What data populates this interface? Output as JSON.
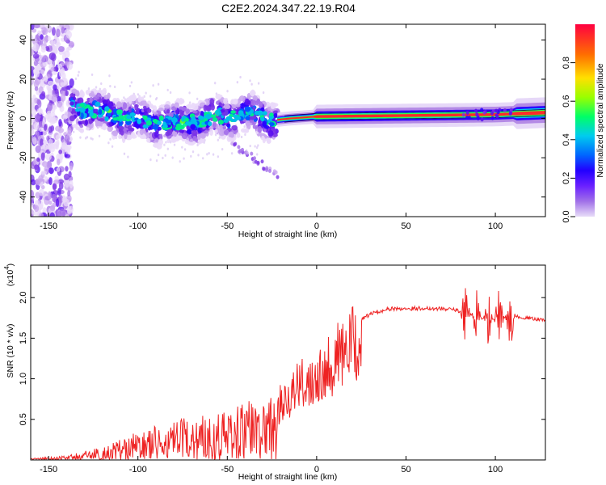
{
  "title": "C2E2.2024.347.22.19.R04",
  "chart_data": [
    {
      "type": "heatmap",
      "xlabel": "Height of straight line (km)",
      "ylabel": "Frequency (Hz)",
      "xlim": [
        -160,
        128
      ],
      "ylim": [
        -50,
        48
      ],
      "xticks": [
        -150,
        -100,
        -50,
        0,
        50,
        100
      ],
      "yticks": [
        -40,
        -20,
        0,
        20,
        40
      ],
      "colorbar": {
        "label": "Normalized spectral amplitude",
        "range": [
          0,
          1
        ],
        "ticks": [
          "0.0",
          "0.2",
          "0.4",
          "0.6",
          "0.8"
        ],
        "colors": [
          "#e6d9f7",
          "#b48ae6",
          "#7b2fe0",
          "#3a00ff",
          "#0055ff",
          "#00ccee",
          "#00ff66",
          "#aaff00",
          "#ffdd00",
          "#ff6600",
          "#ff0044"
        ]
      },
      "ridge": {
        "description_points": [
          {
            "x": -140,
            "f": 7
          },
          {
            "x": -120,
            "f": 3
          },
          {
            "x": -100,
            "f": -1
          },
          {
            "x": -80,
            "f": -3
          },
          {
            "x": -60,
            "f": 0
          },
          {
            "x": -40,
            "f": 2
          },
          {
            "x": -25,
            "f": -1
          },
          {
            "x": -15,
            "f": 0
          },
          {
            "x": 0,
            "f": 1
          },
          {
            "x": 50,
            "f": 1.5
          },
          {
            "x": 100,
            "f": 2
          },
          {
            "x": 128,
            "f": 3
          }
        ]
      }
    },
    {
      "type": "line",
      "xlabel": "Height of straight line (km)",
      "ylabel": "SNR (10 * v/v)",
      "yscale_label": "(x10",
      "yscale_exp": "4",
      "xlim": [
        -160,
        128
      ],
      "ylim": [
        0,
        2.4
      ],
      "xticks": [
        -150,
        -100,
        -50,
        0,
        50,
        100
      ],
      "yticks": [
        "0.5",
        "1.0",
        "1.5",
        "2.0"
      ],
      "color": "#ee2222",
      "envelope": [
        {
          "x": -160,
          "y": 0.01
        },
        {
          "x": -140,
          "y": 0.03
        },
        {
          "x": -120,
          "y": 0.1
        },
        {
          "x": -100,
          "y": 0.22
        },
        {
          "x": -80,
          "y": 0.3
        },
        {
          "x": -60,
          "y": 0.38
        },
        {
          "x": -40,
          "y": 0.45
        },
        {
          "x": -25,
          "y": 0.55
        },
        {
          "x": -20,
          "y": 0.85
        },
        {
          "x": -10,
          "y": 1.05
        },
        {
          "x": 0,
          "y": 1.25
        },
        {
          "x": 10,
          "y": 1.45
        },
        {
          "x": 20,
          "y": 1.65
        },
        {
          "x": 30,
          "y": 1.8
        },
        {
          "x": 40,
          "y": 1.86
        },
        {
          "x": 60,
          "y": 1.87
        },
        {
          "x": 75,
          "y": 1.86
        },
        {
          "x": 85,
          "y": 1.8
        },
        {
          "x": 95,
          "y": 1.72
        },
        {
          "x": 110,
          "y": 1.77
        },
        {
          "x": 128,
          "y": 1.72
        }
      ]
    }
  ]
}
